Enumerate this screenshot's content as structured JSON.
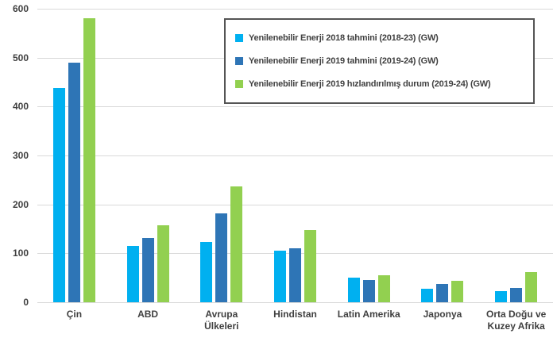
{
  "chart_data": {
    "type": "bar",
    "title": "",
    "categories": [
      "Çin",
      "ABD",
      "Avrupa Ülkeleri",
      "Hindistan",
      "Latin Amerika",
      "Japonya",
      "Orta Doğu ve Kuzey Afrika"
    ],
    "series": [
      {
        "name": "Yenilenebilir Enerji 2018 tahmini (2018-23) (GW)",
        "color": "#00b0f0",
        "values": [
          438,
          115,
          123,
          106,
          50,
          28,
          23
        ]
      },
      {
        "name": "Yenilenebilir Enerji 2019 tahmini (2019-24) (GW)",
        "color": "#2e75b6",
        "values": [
          489,
          131,
          182,
          111,
          45,
          38,
          29
        ]
      },
      {
        "name": "Yenilenebilir Enerji 2019 hızlandırılmış durum (2019-24) (GW)",
        "color": "#92d050",
        "values": [
          580,
          157,
          237,
          148,
          55,
          44,
          61
        ]
      }
    ],
    "y_ticks": [
      0,
      100,
      200,
      300,
      400,
      500,
      600
    ],
    "ylim": [
      0,
      600
    ],
    "grid": true,
    "gridline_color": "#d9d9d9",
    "axis_text_color": "#404040",
    "legend_position": "top-right",
    "legend_border_color": "#555555"
  }
}
